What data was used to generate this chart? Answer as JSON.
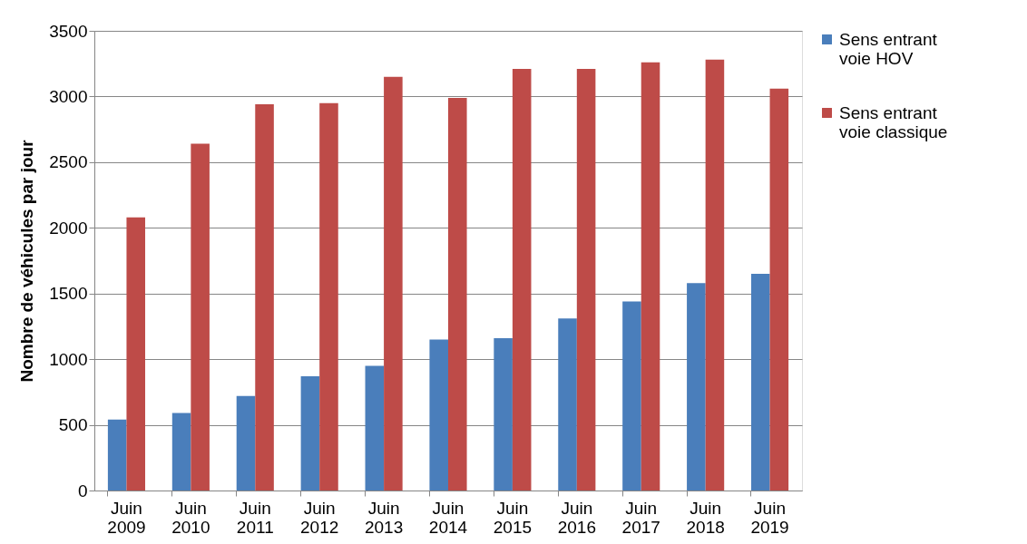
{
  "chart_data": {
    "type": "bar",
    "ylabel": "Nombre de véhicules par jour",
    "categories": [
      "Juin 2009",
      "Juin 2010",
      "Juin 2011",
      "Juin 2012",
      "Juin 2013",
      "Juin 2014",
      "Juin 2015",
      "Juin 2016",
      "Juin 2017",
      "Juin 2018",
      "Juin 2019"
    ],
    "series": [
      {
        "name": "Sens entrant voie HOV",
        "color": "#4a7ebb",
        "values": [
          540,
          590,
          720,
          870,
          950,
          1150,
          1160,
          1310,
          1440,
          1580,
          1650
        ]
      },
      {
        "name": "Sens entrant voie classique",
        "color": "#be4b48",
        "values": [
          2080,
          2640,
          2940,
          2950,
          3150,
          2990,
          3210,
          3210,
          3260,
          3280,
          3060
        ]
      }
    ],
    "ylim": [
      0,
      3500
    ],
    "yticks": [
      0,
      500,
      1000,
      1500,
      2000,
      2500,
      3000,
      3500
    ],
    "grid": "y",
    "legend": "right"
  }
}
